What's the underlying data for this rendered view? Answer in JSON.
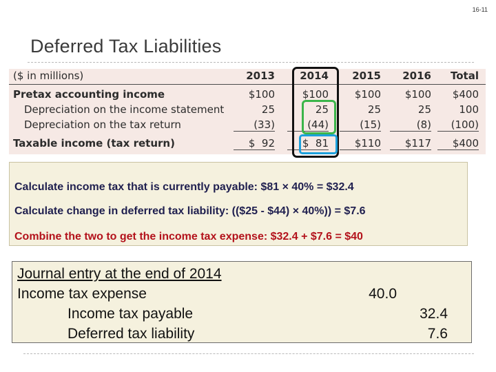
{
  "page": {
    "number": "16-11",
    "title": "Deferred Tax Liabilities"
  },
  "table": {
    "header": {
      "label": "($ in millions)",
      "years": [
        "2013",
        "2014",
        "2015",
        "2016",
        "Total"
      ]
    },
    "rows": [
      {
        "label": "Pretax accounting income",
        "values": [
          "$100",
          "$100",
          "$100",
          "$100",
          "$400"
        ]
      },
      {
        "label": "Depreciation on the income statement",
        "values": [
          "25",
          "25",
          "25",
          "25",
          "100"
        ]
      },
      {
        "label": "Depreciation on the tax return",
        "values": [
          "(33)",
          "(44)",
          "(15)",
          "(8)",
          "(100)"
        ]
      },
      {
        "label": "Taxable income (tax return)",
        "values": [
          "$  92",
          "$  81",
          "$110",
          "$117",
          "$400"
        ]
      }
    ]
  },
  "highlight_colors": {
    "column_2014": "#111111",
    "depreciation_2014": "#3bb54a",
    "taxable_2014": "#1ca0dc"
  },
  "calculations": [
    "Calculate income tax that is currently payable:  $81 × 40% = $32.4",
    "Calculate change in deferred tax liability: (($25 - $44) × 40%)) = $7.6",
    "Combine the two to get the income tax expense: $32.4 + $7.6 = $40"
  ],
  "journal": {
    "heading": "Journal entry at the end of 2014",
    "lines": [
      {
        "account": "Income tax expense",
        "debit": "40.0",
        "credit": ""
      },
      {
        "account": "Income tax payable",
        "debit": "",
        "credit": "32.4"
      },
      {
        "account": "Deferred tax liability",
        "debit": "",
        "credit": "7.6"
      }
    ]
  }
}
